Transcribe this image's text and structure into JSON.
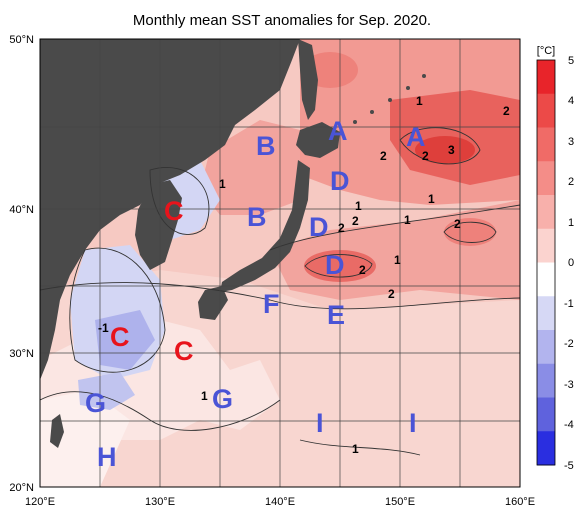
{
  "title": "Monthly mean SST anomalies for Sep. 2020.",
  "lat_ticks": [
    "50°N",
    "40°N",
    "30°N",
    "20°N"
  ],
  "lon_ticks": [
    "120°E",
    "130°E",
    "140°E",
    "150°E",
    "160°E"
  ],
  "colorbar": {
    "unit": "[°C]",
    "ticks": [
      "5",
      "4",
      "3",
      "2",
      "1",
      "0",
      "-1",
      "-2",
      "-3",
      "-4",
      "-5"
    ],
    "colors": [
      "#e8242a",
      "#ec4a48",
      "#f06b67",
      "#f48d88",
      "#f8b0ab",
      "#fbd3cf",
      "#ffffff",
      "#d6d8f5",
      "#b2b4ee",
      "#8a8de6",
      "#5f62dd",
      "#2a2ee0"
    ]
  },
  "region_labels": [
    {
      "text": "A",
      "color": "#4a54d6"
    },
    {
      "text": "A",
      "color": "#4a54d6"
    },
    {
      "text": "B",
      "color": "#4a54d6"
    },
    {
      "text": "B",
      "color": "#4a54d6"
    },
    {
      "text": "C",
      "color": "#e8141c"
    },
    {
      "text": "C",
      "color": "#e8141c"
    },
    {
      "text": "C",
      "color": "#e8141c"
    },
    {
      "text": "D",
      "color": "#4a54d6"
    },
    {
      "text": "D",
      "color": "#4a54d6"
    },
    {
      "text": "D",
      "color": "#4a54d6"
    },
    {
      "text": "E",
      "color": "#4a54d6"
    },
    {
      "text": "F",
      "color": "#4a54d6"
    },
    {
      "text": "G",
      "color": "#4a54d6"
    },
    {
      "text": "G",
      "color": "#4a54d6"
    },
    {
      "text": "H",
      "color": "#4a54d6"
    },
    {
      "text": "I",
      "color": "#4a54d6"
    },
    {
      "text": "I",
      "color": "#4a54d6"
    }
  ],
  "contour_labels": [
    "1",
    "2",
    "2",
    "2",
    "3",
    "1",
    "1",
    "1",
    "2",
    "1",
    "2",
    "2",
    "1",
    "2",
    "2",
    "-1",
    "1",
    "1"
  ]
}
